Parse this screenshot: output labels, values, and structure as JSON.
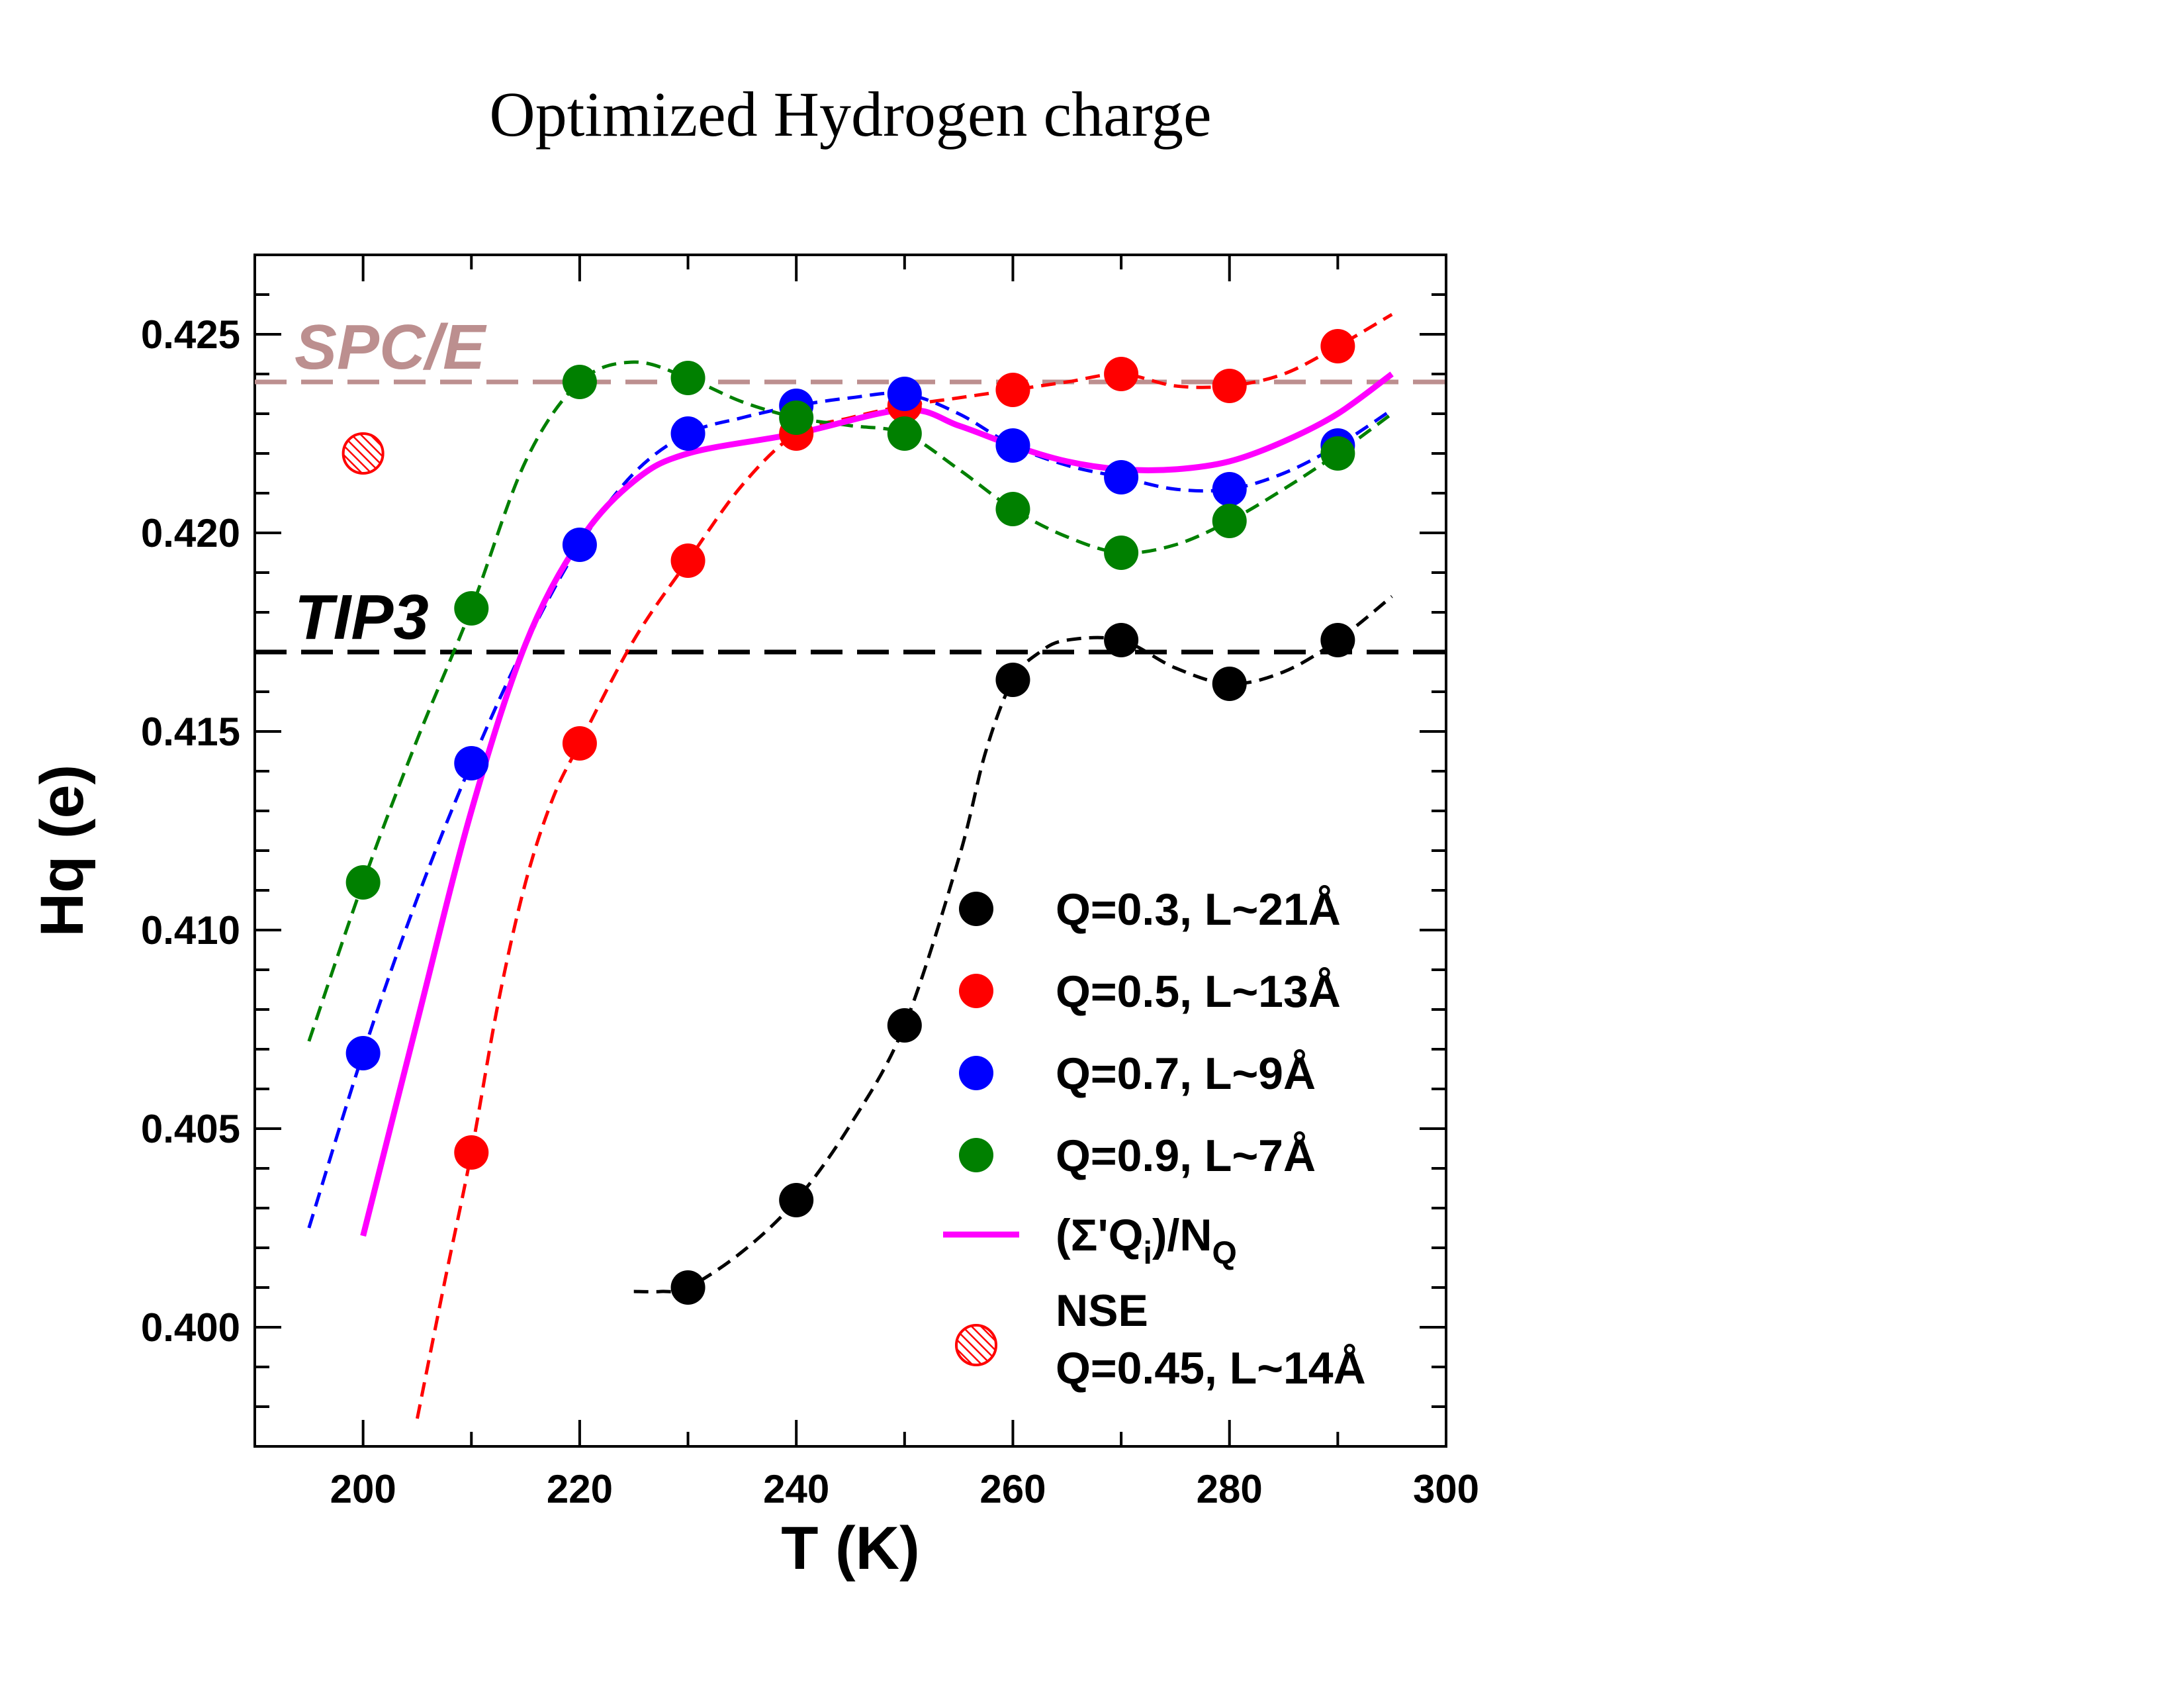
{
  "chart_data": {
    "type": "scatter",
    "title": "Optimized Hydrogen charge",
    "xlabel": "T (K)",
    "ylabel": "Hq (e)",
    "xlim": [
      190,
      300
    ],
    "ylim": [
      0.397,
      0.427
    ],
    "x_ticks": [
      "200",
      "220",
      "240",
      "260",
      "280",
      "300"
    ],
    "y_ticks": [
      "0.400",
      "0.405",
      "0.410",
      "0.415",
      "0.420",
      "0.425"
    ],
    "reference_lines": [
      {
        "label": "SPC/E",
        "y": 0.4238,
        "color": "#bc8f8f"
      },
      {
        "label": "TIP3",
        "y": 0.417,
        "color": "#000000"
      }
    ],
    "series": [
      {
        "name": "Q=0.3, L~21Å",
        "color": "#000000",
        "x": [
          230,
          240,
          250,
          260,
          270,
          280,
          290
        ],
        "y": [
          0.401,
          0.4032,
          0.4076,
          0.4163,
          0.4173,
          0.4162,
          0.4173
        ],
        "fit_x": [
          225,
          227.5,
          230,
          235,
          240,
          245,
          250,
          255,
          257.5,
          260,
          262.5,
          265,
          270,
          275,
          280,
          285,
          290,
          295
        ],
        "fit_y": [
          0.4009,
          0.4009,
          0.401,
          0.4019,
          0.4032,
          0.4051,
          0.4076,
          0.4118,
          0.4145,
          0.4163,
          0.417,
          0.4173,
          0.4173,
          0.4166,
          0.4162,
          0.4165,
          0.4173,
          0.4184
        ]
      },
      {
        "name": "Q=0.5, L~13Å",
        "color": "#ff0000",
        "x": [
          210,
          220,
          230,
          240,
          250,
          260,
          270,
          280,
          290
        ],
        "y": [
          0.4044,
          0.4147,
          0.4193,
          0.4225,
          0.4232,
          0.4236,
          0.424,
          0.4237,
          0.4247
        ],
        "fit_x": [
          205,
          207.5,
          210,
          212.5,
          215,
          217.5,
          220,
          225,
          230,
          235,
          240,
          245,
          250,
          255,
          260,
          265,
          270,
          275,
          280,
          285,
          290,
          295
        ],
        "fit_y": [
          0.3977,
          0.4011,
          0.4044,
          0.4082,
          0.4112,
          0.4133,
          0.4147,
          0.4173,
          0.4193,
          0.4212,
          0.4225,
          0.4229,
          0.4232,
          0.4234,
          0.4236,
          0.4238,
          0.424,
          0.4237,
          0.4237,
          0.424,
          0.4247,
          0.4255
        ]
      },
      {
        "name": "Q=0.7, L~9Å",
        "color": "#0000ff",
        "x": [
          200,
          210,
          220,
          230,
          240,
          250,
          260,
          270,
          280,
          290
        ],
        "y": [
          0.4069,
          0.4142,
          0.4197,
          0.4225,
          0.4232,
          0.4235,
          0.4222,
          0.4214,
          0.4211,
          0.4222
        ],
        "fit_x": [
          195,
          200,
          205,
          210,
          215,
          220,
          225,
          230,
          235,
          240,
          245,
          250,
          255,
          260,
          265,
          270,
          275,
          280,
          285,
          290,
          295
        ],
        "fit_y": [
          0.4025,
          0.4069,
          0.4108,
          0.4142,
          0.4172,
          0.4197,
          0.4215,
          0.4225,
          0.4229,
          0.4232,
          0.4234,
          0.4235,
          0.423,
          0.4222,
          0.4217,
          0.4214,
          0.4211,
          0.4211,
          0.4215,
          0.4222,
          0.4231
        ]
      },
      {
        "name": "Q=0.9, L~7Å",
        "color": "#008000",
        "x": [
          200,
          210,
          220,
          230,
          240,
          250,
          260,
          270,
          280,
          290
        ],
        "y": [
          0.4112,
          0.4181,
          0.4238,
          0.4239,
          0.4229,
          0.4225,
          0.4206,
          0.4195,
          0.4203,
          0.422
        ],
        "fit_x": [
          195,
          200,
          205,
          210,
          215,
          220,
          225,
          230,
          235,
          240,
          245,
          250,
          255,
          260,
          265,
          270,
          275,
          280,
          285,
          290,
          295
        ],
        "fit_y": [
          0.4072,
          0.4112,
          0.4148,
          0.4181,
          0.4218,
          0.4238,
          0.4243,
          0.4239,
          0.4233,
          0.4229,
          0.4227,
          0.4225,
          0.4216,
          0.4206,
          0.4199,
          0.4195,
          0.4197,
          0.4203,
          0.4211,
          0.422,
          0.423
        ]
      },
      {
        "name": "(Σ'Qᵢ)/N_Q",
        "color": "#ff00ff",
        "line_only": true,
        "x": [
          200,
          205,
          210,
          215,
          220,
          225,
          230,
          240,
          250,
          255,
          260,
          265,
          270,
          275,
          280,
          285,
          290,
          295
        ],
        "y": [
          0.4023,
          0.4077,
          0.413,
          0.4172,
          0.4198,
          0.4213,
          0.422,
          0.4225,
          0.4231,
          0.4227,
          0.4222,
          0.4218,
          0.4216,
          0.4216,
          0.4218,
          0.4223,
          0.423,
          0.424
        ]
      },
      {
        "name": "NSE",
        "name_line2": "Q=0.45, L~14Å",
        "color": "#ff0000",
        "hatched": true,
        "x": [
          200
        ],
        "y": [
          0.422
        ]
      }
    ],
    "legend_position": "bottom-right",
    "grid": false
  }
}
